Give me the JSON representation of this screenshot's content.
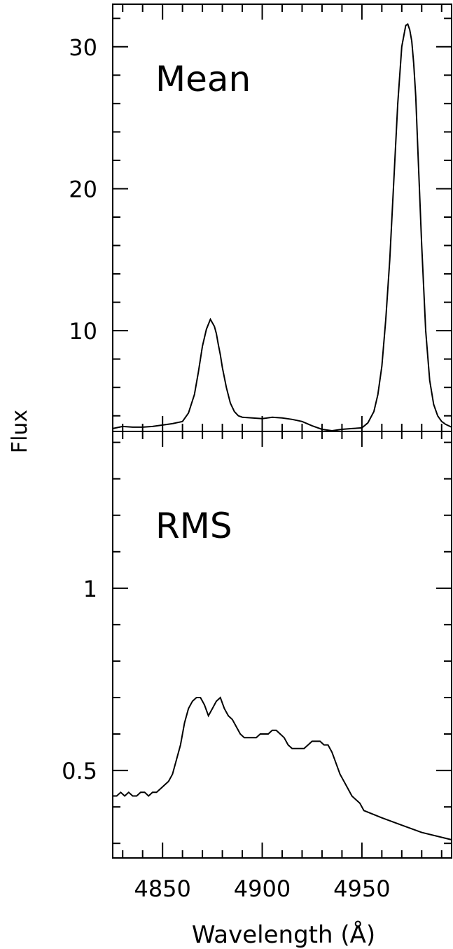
{
  "chart_data": [
    {
      "type": "line",
      "panel": "top",
      "title": "Mean",
      "xlabel": "Wavelength (Å)",
      "ylabel": "Flux",
      "xlim": [
        4825,
        4995
      ],
      "ylim": [
        2.9,
        33
      ],
      "x_ticks_labeled": [],
      "y_ticks_labeled": [
        "10",
        "20",
        "30"
      ],
      "y_tick_values": [
        10,
        20,
        30
      ],
      "grid": false,
      "series": [
        {
          "x": [
            4825,
            4830,
            4835,
            4840,
            4845,
            4850,
            4855,
            4860,
            4863,
            4866,
            4868,
            4870,
            4872,
            4874,
            4876,
            4877,
            4878,
            4879,
            4880,
            4882,
            4884,
            4886,
            4888,
            4890,
            4895,
            4900,
            4905,
            4910,
            4915,
            4920,
            4925,
            4930,
            4935,
            4940,
            4945,
            4950,
            4953,
            4956,
            4958,
            4960,
            4962,
            4964,
            4966,
            4968,
            4970,
            4972,
            4973,
            4974,
            4975,
            4976,
            4977,
            4978,
            4980,
            4982,
            4984,
            4986,
            4988,
            4990,
            4992,
            4995
          ],
          "y": [
            3.1,
            3.25,
            3.2,
            3.2,
            3.25,
            3.35,
            3.45,
            3.6,
            4.2,
            5.5,
            7.1,
            8.9,
            10.1,
            10.8,
            10.3,
            9.8,
            9.0,
            8.3,
            7.4,
            6.0,
            4.9,
            4.3,
            4.0,
            3.9,
            3.85,
            3.8,
            3.9,
            3.85,
            3.75,
            3.6,
            3.3,
            3.05,
            2.95,
            3.05,
            3.1,
            3.15,
            3.5,
            4.3,
            5.5,
            7.5,
            10.8,
            15.0,
            20.5,
            26.0,
            30.0,
            31.5,
            31.6,
            31.2,
            30.4,
            28.8,
            26.5,
            23.0,
            16.0,
            10.0,
            6.5,
            4.8,
            4.0,
            3.6,
            3.4,
            3.2
          ]
        }
      ]
    },
    {
      "type": "line",
      "panel": "bottom",
      "title": "RMS",
      "xlabel": "Wavelength (Å)",
      "ylabel": "Flux",
      "xlim": [
        4825,
        4995
      ],
      "ylim": [
        0.26,
        1.43
      ],
      "x_ticks_labeled": [
        "4850",
        "4900",
        "4950"
      ],
      "x_tick_values": [
        4850,
        4900,
        4950
      ],
      "y_ticks_labeled": [
        "0.5",
        "1"
      ],
      "y_tick_values": [
        0.5,
        1.0
      ],
      "grid": false,
      "series": [
        {
          "x": [
            4825,
            4827,
            4829,
            4831,
            4833,
            4835,
            4837,
            4839,
            4841,
            4843,
            4845,
            4847,
            4849,
            4851,
            4853,
            4855,
            4857,
            4859,
            4861,
            4863,
            4865,
            4867,
            4869,
            4871,
            4873,
            4875,
            4877,
            4879,
            4881,
            4883,
            4885,
            4887,
            4889,
            4891,
            4893,
            4895,
            4897,
            4899,
            4901,
            4903,
            4905,
            4907,
            4909,
            4911,
            4913,
            4915,
            4917,
            4919,
            4921,
            4923,
            4925,
            4927,
            4929,
            4931,
            4933,
            4935,
            4937,
            4939,
            4941,
            4943,
            4945,
            4947,
            4949,
            4951,
            4960,
            4970,
            4980,
            4995
          ],
          "y": [
            0.43,
            0.43,
            0.44,
            0.43,
            0.44,
            0.43,
            0.43,
            0.44,
            0.44,
            0.43,
            0.44,
            0.44,
            0.45,
            0.46,
            0.47,
            0.49,
            0.53,
            0.57,
            0.63,
            0.67,
            0.69,
            0.7,
            0.7,
            0.68,
            0.65,
            0.67,
            0.69,
            0.7,
            0.67,
            0.65,
            0.64,
            0.62,
            0.6,
            0.59,
            0.59,
            0.59,
            0.59,
            0.6,
            0.6,
            0.6,
            0.61,
            0.61,
            0.6,
            0.59,
            0.57,
            0.56,
            0.56,
            0.56,
            0.56,
            0.57,
            0.58,
            0.58,
            0.58,
            0.57,
            0.57,
            0.55,
            0.52,
            0.49,
            0.47,
            0.45,
            0.43,
            0.42,
            0.41,
            0.39,
            0.37,
            0.35,
            0.33,
            0.31
          ]
        }
      ]
    }
  ],
  "panel_labels": {
    "top": "Mean",
    "bottom": "RMS"
  },
  "axis_labels": {
    "x": "Wavelength (Å)",
    "y": "Flux"
  }
}
